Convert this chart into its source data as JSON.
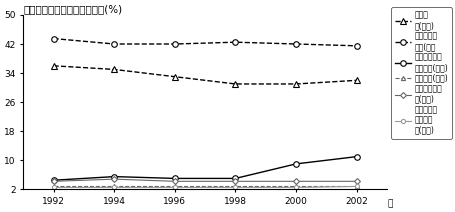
{
  "title": "各类出口产品占世界市场份额(%)",
  "years": [
    1992,
    1994,
    1996,
    1998,
    2000,
    2002
  ],
  "series": [
    {
      "label": "初级产\n品(中国)",
      "values": [
        36,
        35,
        33,
        31,
        31,
        32
      ],
      "linestyle": "--",
      "marker": "^",
      "color": "#000000",
      "linewidth": 1.0,
      "markersize": 4
    },
    {
      "label": "劳动密集型\n产品(中国",
      "values": [
        43.5,
        42,
        42,
        42.5,
        42,
        41.5
      ],
      "linestyle": "--",
      "marker": "o",
      "color": "#000000",
      "linewidth": 1.0,
      "markersize": 4
    },
    {
      "label": "资本与技术密\n集型产品(中国)",
      "values": [
        4.5,
        5.5,
        5,
        5,
        9,
        11
      ],
      "linestyle": "-",
      "marker": "o",
      "color": "#000000",
      "linewidth": 1.0,
      "markersize": 4
    },
    {
      "label": "初级产品(欧盟)",
      "values": [
        3,
        3,
        3,
        3,
        3,
        3
      ],
      "linestyle": "--",
      "marker": "^",
      "color": "#666666",
      "linewidth": 0.8,
      "markersize": 3
    },
    {
      "label": "劳动密集型产\n品(欧盟)",
      "values": [
        4.2,
        4.8,
        4.2,
        4.2,
        4.2,
        4.2
      ],
      "linestyle": "-",
      "marker": "D",
      "color": "#666666",
      "linewidth": 0.8,
      "markersize": 3
    },
    {
      "label": "资本与技术\n密集型产\n品(欧盟)",
      "values": [
        2.5,
        2.5,
        2.5,
        2.5,
        2.5,
        2.8
      ],
      "linestyle": "-",
      "marker": "o",
      "color": "#999999",
      "linewidth": 0.8,
      "markersize": 3
    }
  ],
  "ylim": [
    2,
    50
  ],
  "yticks": [
    2,
    10,
    18,
    26,
    34,
    42,
    50
  ],
  "xtick_label_suffix": "年",
  "background_color": "#ffffff"
}
